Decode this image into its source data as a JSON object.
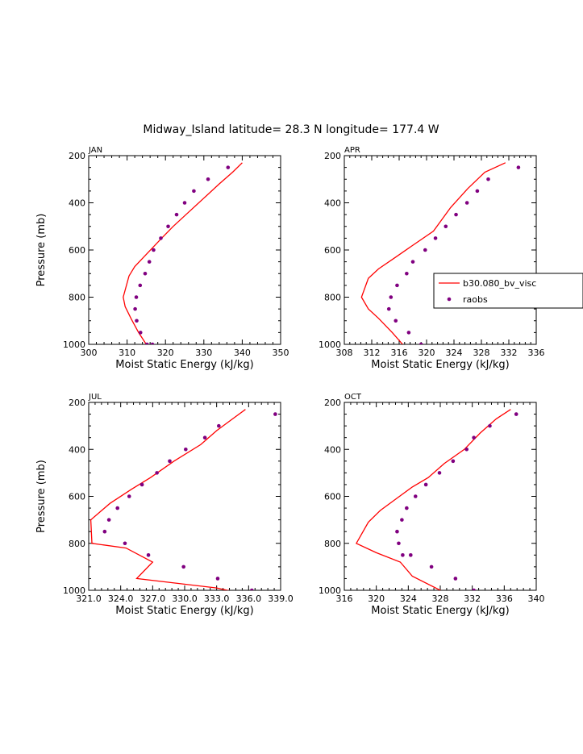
{
  "title": "Midway_Island  latitude= 28.3 N longitude= 177.4 W",
  "colors": {
    "model": "#ff0000",
    "raobs": "#800080",
    "axis": "#000000"
  },
  "legend": {
    "model_label": "b30.080_bv_visc",
    "raobs_label": "raobs",
    "panel": "APR",
    "placement": "right"
  },
  "chart_data": [
    {
      "type": "line",
      "panel": "JAN",
      "xlabel": "Moist Static Energy (kJ/kg)",
      "ylabel": "Pressure (mb)",
      "xlim": [
        300,
        350
      ],
      "xticks": [
        300,
        310,
        320,
        330,
        340,
        350
      ],
      "xtick_labels": [
        "300",
        "310",
        "320",
        "330",
        "340",
        "350"
      ],
      "ylim": [
        1000,
        200
      ],
      "yticks": [
        200,
        400,
        600,
        800,
        1000
      ],
      "ytick_labels": [
        "200",
        "400",
        "600",
        "800",
        "1000"
      ],
      "series": [
        {
          "name": "b30.080_bv_visc",
          "style": "line",
          "x": [
            340,
            337.5,
            334,
            330,
            326,
            322,
            319,
            315.5,
            312,
            310.5,
            309,
            309.5,
            311,
            313,
            315
          ],
          "y": [
            230,
            270,
            320,
            380,
            440,
            500,
            550,
            610,
            670,
            710,
            800,
            840,
            890,
            950,
            1000
          ]
        },
        {
          "name": "raobs",
          "style": "scatter",
          "x": [
            336.3,
            331.1,
            327.4,
            325.0,
            322.9,
            320.7,
            318.8,
            316.9,
            315.8,
            314.7,
            313.4,
            312.4,
            312.1,
            312.5,
            313.5,
            315.2,
            316.6
          ],
          "y": [
            250,
            300,
            350,
            400,
            450,
            500,
            550,
            600,
            650,
            700,
            750,
            800,
            850,
            900,
            950,
            1000,
            1000
          ]
        }
      ]
    },
    {
      "type": "line",
      "panel": "APR",
      "xlabel": "Moist Static Energy (kJ/kg)",
      "ylabel": "",
      "xlim": [
        308,
        336
      ],
      "xticks": [
        308,
        312,
        316,
        320,
        324,
        328,
        332,
        336
      ],
      "xtick_labels": [
        "308",
        "312",
        "316",
        "320",
        "324",
        "328",
        "332",
        "336"
      ],
      "ylim": [
        1000,
        200
      ],
      "yticks": [
        200,
        400,
        600,
        800,
        1000
      ],
      "ytick_labels": [
        "200",
        "400",
        "600",
        "800",
        "1000"
      ],
      "series": [
        {
          "name": "b30.080_bv_visc",
          "style": "line",
          "x": [
            331.5,
            328.5,
            326,
            323.5,
            321,
            318,
            315.5,
            313,
            311.5,
            310.5,
            311.5,
            313,
            315,
            316.5
          ],
          "y": [
            230,
            270,
            340,
            420,
            520,
            580,
            630,
            680,
            720,
            800,
            850,
            890,
            950,
            1000
          ]
        },
        {
          "name": "raobs",
          "style": "scatter",
          "x": [
            333.4,
            329.0,
            327.4,
            325.9,
            324.3,
            322.8,
            321.3,
            319.8,
            318.0,
            317.1,
            315.7,
            314.8,
            314.5,
            315.5,
            317.4,
            319.2
          ],
          "y": [
            250,
            300,
            350,
            400,
            450,
            500,
            550,
            600,
            650,
            700,
            750,
            800,
            850,
            900,
            950,
            1000
          ]
        }
      ]
    },
    {
      "type": "line",
      "panel": "JUL",
      "xlabel": "Moist Static Energy (kJ/kg)",
      "ylabel": "Pressure (mb)",
      "xlim": [
        321,
        339
      ],
      "xticks": [
        321,
        324,
        327,
        330,
        333,
        336,
        339
      ],
      "xtick_labels": [
        "321.0",
        "324.0",
        "327.0",
        "330.0",
        "333.0",
        "336.0",
        "339.0"
      ],
      "ylim": [
        1000,
        200
      ],
      "yticks": [
        200,
        400,
        600,
        800,
        1000
      ],
      "ytick_labels": [
        "200",
        "400",
        "600",
        "800",
        "1000"
      ],
      "series": [
        {
          "name": "b30.080_bv_visc",
          "style": "line",
          "x": [
            335.7,
            334.5,
            333,
            331.5,
            329,
            326.8,
            325,
            323,
            321.2,
            321.3,
            324.5,
            327,
            325.5,
            333,
            335,
            335.2
          ],
          "y": [
            230,
            270,
            320,
            380,
            450,
            520,
            570,
            630,
            700,
            800,
            820,
            880,
            950,
            990,
            1010,
            1030
          ]
        },
        {
          "name": "raobs",
          "style": "scatter",
          "x": [
            338.5,
            333.2,
            331.9,
            330.1,
            328.6,
            327.4,
            326.0,
            324.8,
            323.7,
            322.9,
            322.5,
            324.4,
            326.6,
            329.9,
            333.1,
            336.3
          ],
          "y": [
            250,
            300,
            350,
            400,
            450,
            500,
            550,
            600,
            650,
            700,
            750,
            800,
            850,
            900,
            950,
            1000
          ]
        }
      ]
    },
    {
      "type": "line",
      "panel": "OCT",
      "xlabel": "Moist Static Energy (kJ/kg)",
      "ylabel": "",
      "xlim": [
        316,
        340
      ],
      "xticks": [
        316,
        320,
        324,
        328,
        332,
        336,
        340
      ],
      "xtick_labels": [
        "316",
        "320",
        "324",
        "328",
        "332",
        "336",
        "340"
      ],
      "ylim": [
        1000,
        200
      ],
      "yticks": [
        200,
        400,
        600,
        800,
        1000
      ],
      "ytick_labels": [
        "200",
        "400",
        "600",
        "800",
        "1000"
      ],
      "series": [
        {
          "name": "b30.080_bv_visc",
          "style": "line",
          "x": [
            336.8,
            335,
            333,
            331,
            328.5,
            326.5,
            324.5,
            322.5,
            320.5,
            319,
            317.5,
            320,
            323,
            324.5,
            328,
            328.5
          ],
          "y": [
            230,
            270,
            330,
            400,
            460,
            520,
            560,
            610,
            660,
            710,
            800,
            840,
            880,
            940,
            1000,
            1030
          ]
        },
        {
          "name": "raobs",
          "style": "scatter",
          "x": [
            337.5,
            334.2,
            332.2,
            331.3,
            329.6,
            327.9,
            326.2,
            324.9,
            323.8,
            323.2,
            322.6,
            322.8,
            323.3,
            324.3,
            326.9,
            329.9,
            332.2
          ],
          "y": [
            250,
            300,
            350,
            400,
            450,
            500,
            550,
            600,
            650,
            700,
            750,
            800,
            850,
            850,
            900,
            950,
            1000
          ]
        }
      ]
    }
  ]
}
